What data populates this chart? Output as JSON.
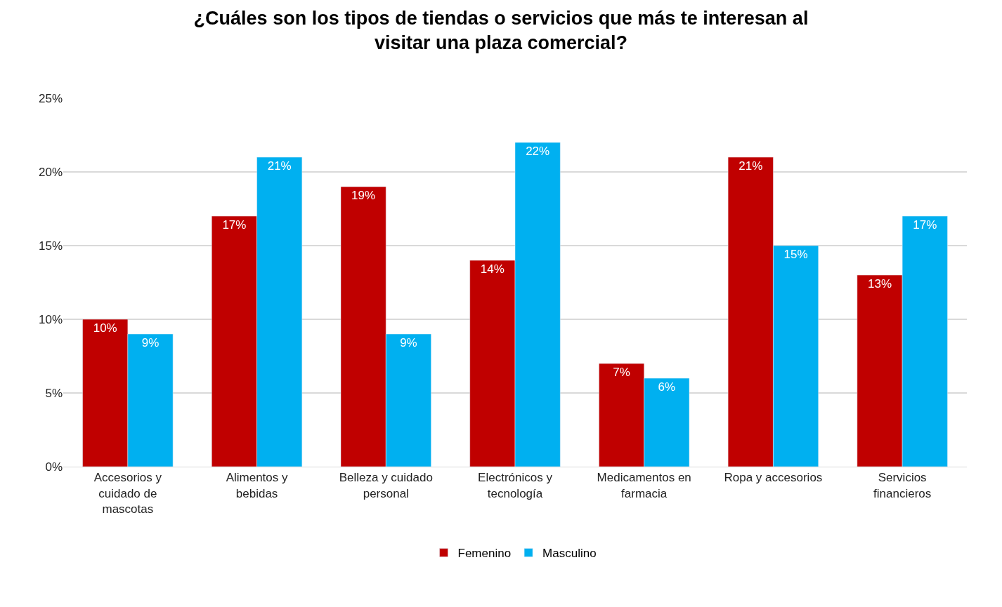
{
  "chart_data": {
    "type": "bar",
    "title": "¿Cuáles son los tipos de tiendas o servicios que más te interesan al visitar una plaza comercial?",
    "categories": [
      "Accesorios y cuidado de mascotas",
      "Alimentos y bebidas",
      "Belleza y cuidado personal",
      "Electrónicos y tecnología",
      "Medicamentos en farmacia",
      "Ropa y accesorios",
      "Servicios financieros"
    ],
    "series": [
      {
        "name": "Femenino",
        "color": "#c00000",
        "values": [
          10,
          17,
          19,
          14,
          7,
          21,
          13
        ],
        "value_labels": [
          "10%",
          "17%",
          "19%",
          "14%",
          "7%",
          "21%",
          "13%"
        ]
      },
      {
        "name": "Masculino",
        "color": "#00b0f0",
        "values": [
          9,
          21,
          9,
          22,
          6,
          15,
          17
        ],
        "value_labels": [
          "9%",
          "21%",
          "9%",
          "22%",
          "6%",
          "15%",
          "17%"
        ]
      }
    ],
    "ylim": [
      0,
      25
    ],
    "yticks": [
      {
        "value": 0,
        "label": "0%"
      },
      {
        "value": 5,
        "label": "5%"
      },
      {
        "value": 10,
        "label": "10%"
      },
      {
        "value": 15,
        "label": "15%"
      },
      {
        "value": 20,
        "label": "20%"
      },
      {
        "value": 25,
        "label": "25%"
      }
    ],
    "grid": "y",
    "legend": "bottom"
  }
}
